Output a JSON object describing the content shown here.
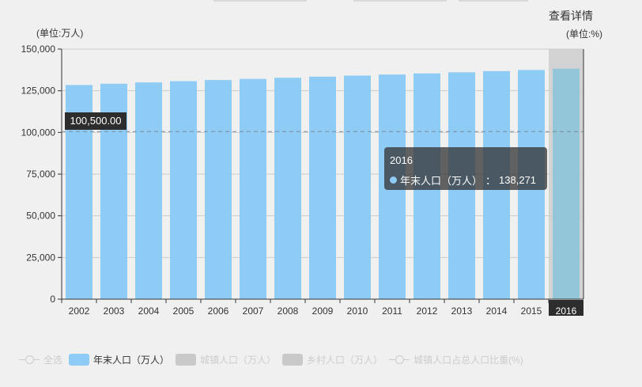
{
  "header": {
    "details_link": "查看详情",
    "left_unit": "(单位:万人)",
    "right_unit": "(单位:%)"
  },
  "reference_line": {
    "value": 100500,
    "label": "100,500.00"
  },
  "tooltip": {
    "title": "2016",
    "series": "年末人口（万人）",
    "value": "138,271"
  },
  "legend": [
    {
      "label": "全选",
      "type": "line",
      "active": false
    },
    {
      "label": "年末人口（万人）",
      "type": "bar",
      "active": true
    },
    {
      "label": "城镇人口（万人）",
      "type": "bar",
      "active": false
    },
    {
      "label": "乡村人口（万人）",
      "type": "bar",
      "active": false
    },
    {
      "label": "城镇人口占总人口比重(%)",
      "type": "line",
      "active": false
    }
  ],
  "colors": {
    "bar": "#8ecbf5",
    "highlight_bar": "#92c6d8",
    "highlight_band": "#d3d3d3"
  },
  "chart_data": {
    "type": "bar",
    "categories": [
      "2002",
      "2003",
      "2004",
      "2005",
      "2006",
      "2007",
      "2008",
      "2009",
      "2010",
      "2011",
      "2012",
      "2013",
      "2014",
      "2015",
      "2016"
    ],
    "series": [
      {
        "name": "年末人口（万人）",
        "values": [
          128453,
          129227,
          129988,
          130756,
          131448,
          132129,
          132802,
          133450,
          134091,
          134735,
          135404,
          136072,
          136782,
          137462,
          138271
        ]
      }
    ],
    "ylim": [
      0,
      150000
    ],
    "yticks": [
      "0",
      "25,000",
      "50,000",
      "75,000",
      "100,000",
      "125,000",
      "150,000"
    ],
    "ytick_values": [
      0,
      25000,
      50000,
      75000,
      100000,
      125000,
      150000
    ],
    "ylabel": "(单位:万人)",
    "highlighted": "2016",
    "grid": true
  }
}
